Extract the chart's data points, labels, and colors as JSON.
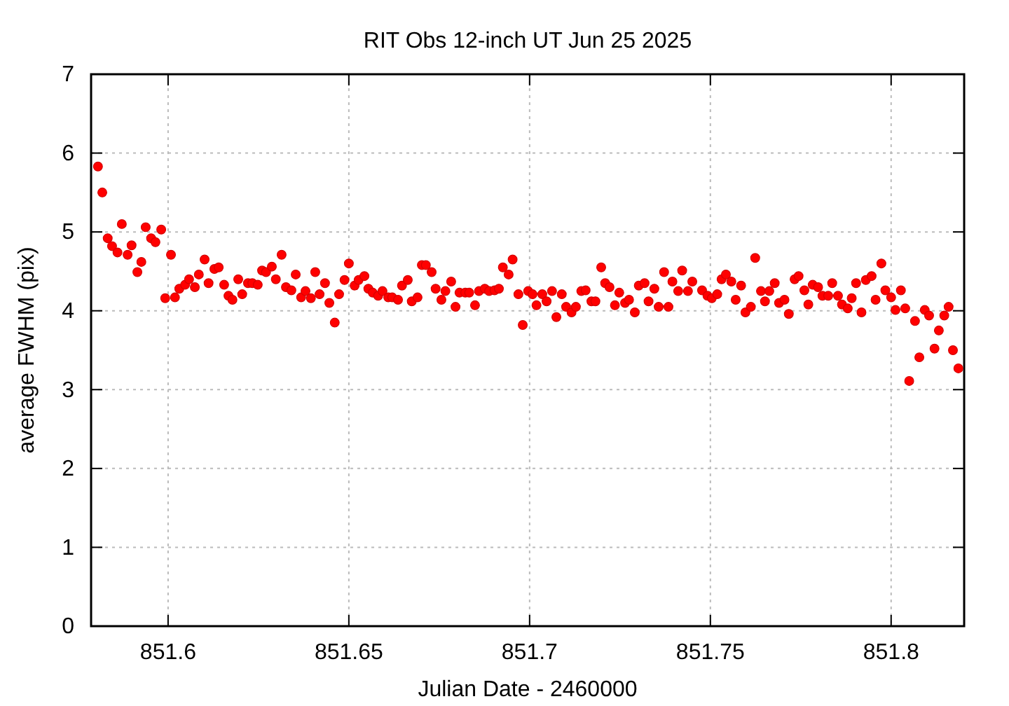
{
  "chart_data": {
    "type": "scatter",
    "title": "RIT Obs 12-inch UT Jun 25 2025",
    "xlabel": "Julian Date - 2460000",
    "ylabel": "average FWHM (pix)",
    "xlim": [
      851.5787,
      851.8202
    ],
    "xticks": [
      851.6,
      851.65,
      851.7,
      851.75,
      851.8
    ],
    "ylim": [
      0,
      7
    ],
    "yticks": [
      0,
      1,
      2,
      3,
      4,
      5,
      6,
      7
    ],
    "grid": true,
    "marker": "circle",
    "series": [
      {
        "color": "#ff0000",
        "x": [
          851.5806,
          851.5818,
          851.5833,
          851.5845,
          851.586,
          851.5872,
          851.5888,
          851.5899,
          851.5915,
          851.5926,
          851.5938,
          851.5953,
          851.5965,
          851.5981,
          851.5992,
          851.6008,
          851.6019,
          851.6031,
          851.6047,
          851.6058,
          851.6074,
          851.6085,
          851.6101,
          851.6112,
          851.6128,
          851.614,
          851.6155,
          851.6167,
          851.6178,
          851.6194,
          851.6205,
          851.6221,
          851.6233,
          851.6248,
          851.626,
          851.6271,
          851.6287,
          851.6298,
          851.6314,
          851.6326,
          851.6341,
          851.6353,
          851.6368,
          851.638,
          851.6395,
          851.6407,
          851.6419,
          851.6434,
          851.6446,
          851.6461,
          851.6473,
          851.6488,
          851.65,
          851.6516,
          851.6527,
          851.6543,
          851.6554,
          851.6566,
          851.6581,
          851.6593,
          851.6609,
          851.662,
          851.6636,
          851.6647,
          851.6663,
          851.6674,
          851.669,
          851.6702,
          851.6713,
          851.6729,
          851.674,
          851.6756,
          851.6767,
          851.6783,
          851.6795,
          851.6806,
          851.6822,
          851.6833,
          851.6849,
          851.686,
          851.6876,
          851.6888,
          851.6903,
          851.6915,
          851.6926,
          851.6942,
          851.6953,
          851.6969,
          851.6981,
          851.6996,
          851.7008,
          851.7019,
          851.7035,
          851.7047,
          851.7062,
          851.7074,
          851.7089,
          851.7101,
          851.7116,
          851.7128,
          851.7143,
          851.7155,
          851.7171,
          851.7182,
          851.7198,
          851.7209,
          851.7221,
          851.7236,
          851.7248,
          851.7264,
          851.7275,
          851.7291,
          851.7302,
          851.7318,
          851.7329,
          851.7345,
          851.7357,
          851.7372,
          851.7384,
          851.7395,
          851.7411,
          851.7422,
          851.7438,
          851.745,
          851.7477,
          851.7492,
          851.7504,
          851.7519,
          851.7531,
          851.7543,
          851.7558,
          851.757,
          851.7585,
          851.7597,
          851.7612,
          851.7624,
          851.764,
          851.7651,
          851.7663,
          851.7678,
          851.769,
          851.7705,
          851.7717,
          851.7733,
          851.7744,
          851.776,
          851.7771,
          851.7783,
          851.7798,
          851.781,
          851.7826,
          851.7837,
          851.7853,
          851.7864,
          851.788,
          851.7891,
          851.7903,
          851.7918,
          851.793,
          851.7946,
          851.7957,
          851.7973,
          851.7984,
          851.8,
          851.8012,
          851.8027,
          851.8039,
          851.805,
          851.8066,
          851.8078,
          851.8093,
          851.8105,
          851.812,
          851.8132,
          851.8147,
          851.8159,
          851.8171,
          851.8186
        ],
        "values": [
          5.83,
          5.5,
          4.92,
          4.82,
          4.74,
          5.1,
          4.71,
          4.83,
          4.49,
          4.62,
          5.06,
          4.92,
          4.87,
          5.03,
          4.16,
          4.71,
          4.17,
          4.28,
          4.33,
          4.4,
          4.3,
          4.46,
          4.65,
          4.35,
          4.53,
          4.55,
          4.33,
          4.19,
          4.14,
          4.4,
          4.21,
          4.35,
          4.35,
          4.33,
          4.51,
          4.49,
          4.56,
          4.4,
          4.71,
          4.3,
          4.26,
          4.46,
          4.17,
          4.25,
          4.16,
          4.49,
          4.21,
          4.35,
          4.1,
          3.85,
          4.21,
          4.39,
          4.6,
          4.32,
          4.39,
          4.44,
          4.28,
          4.23,
          4.19,
          4.25,
          4.17,
          4.17,
          4.14,
          4.32,
          4.39,
          4.12,
          4.17,
          4.58,
          4.58,
          4.49,
          4.28,
          4.14,
          4.25,
          4.37,
          4.05,
          4.23,
          4.23,
          4.23,
          4.07,
          4.25,
          4.28,
          4.25,
          4.26,
          4.28,
          4.55,
          4.46,
          4.65,
          4.21,
          3.82,
          4.25,
          4.21,
          4.07,
          4.21,
          4.12,
          4.25,
          3.92,
          4.21,
          4.05,
          3.98,
          4.05,
          4.25,
          4.26,
          4.12,
          4.12,
          4.55,
          4.35,
          4.3,
          4.07,
          4.23,
          4.1,
          4.14,
          3.98,
          4.32,
          4.35,
          4.12,
          4.28,
          4.05,
          4.49,
          4.05,
          4.37,
          4.25,
          4.51,
          4.25,
          4.37,
          4.26,
          4.19,
          4.16,
          4.21,
          4.4,
          4.46,
          4.37,
          4.14,
          4.32,
          3.98,
          4.05,
          4.67,
          4.25,
          4.12,
          4.25,
          4.35,
          4.1,
          4.14,
          3.96,
          4.4,
          4.44,
          4.26,
          4.08,
          4.33,
          4.3,
          4.19,
          4.19,
          4.35,
          4.19,
          4.08,
          4.03,
          4.16,
          4.35,
          3.98,
          4.39,
          4.44,
          4.14,
          4.6,
          4.26,
          4.17,
          4.01,
          4.26,
          4.03,
          3.11,
          3.87,
          3.41,
          4.01,
          3.94,
          3.52,
          3.75,
          3.94,
          4.05,
          3.5,
          3.27
        ]
      }
    ]
  }
}
